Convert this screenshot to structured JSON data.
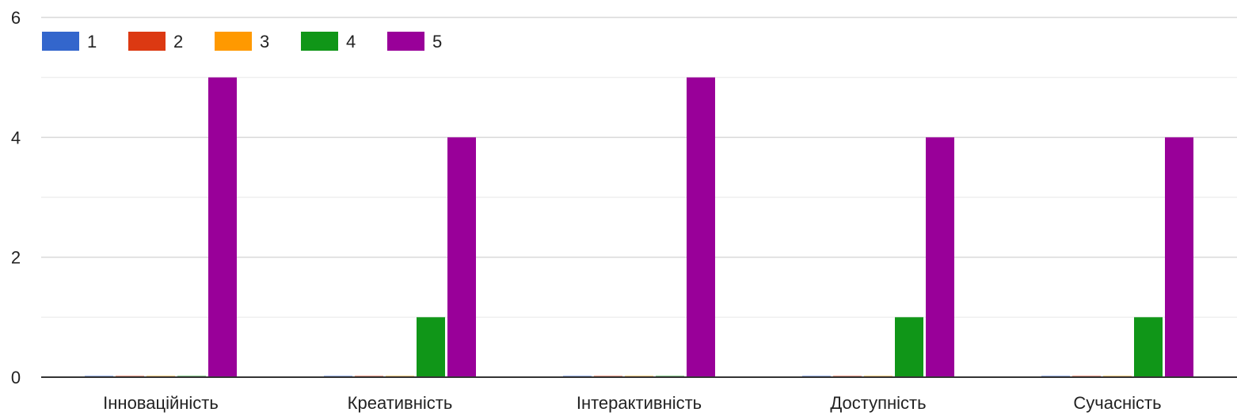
{
  "chart_data": {
    "type": "bar",
    "categories": [
      "Інноваційність",
      "Креативність",
      "Інтерактивність",
      "Доступність",
      "Сучасність"
    ],
    "series": [
      {
        "name": "1",
        "color": "#3366cc",
        "values": [
          0,
          0,
          0,
          0,
          0
        ]
      },
      {
        "name": "2",
        "color": "#dc3912",
        "values": [
          0,
          0,
          0,
          0,
          0
        ]
      },
      {
        "name": "3",
        "color": "#ff9900",
        "values": [
          0,
          0,
          0,
          0,
          0
        ]
      },
      {
        "name": "4",
        "color": "#109618",
        "values": [
          0,
          1,
          0,
          1,
          1
        ]
      },
      {
        "name": "5",
        "color": "#990099",
        "values": [
          5,
          4,
          5,
          4,
          4
        ]
      }
    ],
    "y_ticks": [
      "0",
      "2",
      "4",
      "6"
    ],
    "ylim": [
      0,
      6
    ],
    "minor_gridlines": true,
    "legend_position": "top-left",
    "grid_color": "#e0e0e0",
    "axis_color": "#333333"
  }
}
